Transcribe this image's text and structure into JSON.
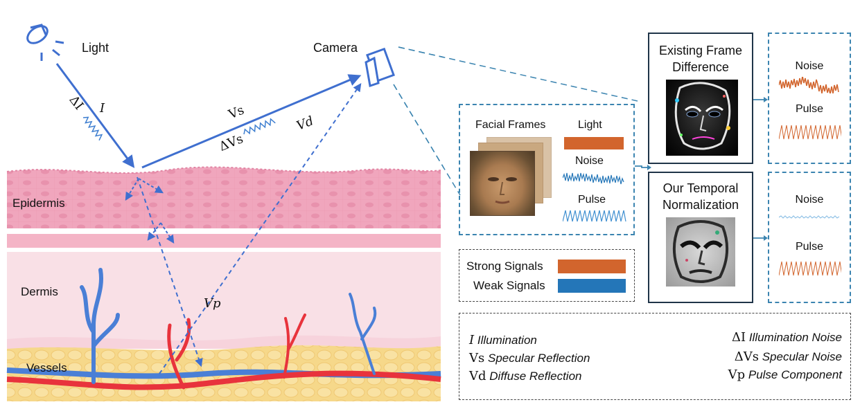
{
  "scene": {
    "light_label": "Light",
    "camera_label": "Camera",
    "sym_I": "I",
    "sym_dI": "ΔI",
    "sym_Vs": "Vs",
    "sym_dVs": "ΔVs",
    "sym_Vd": "Vd",
    "sym_Vp": "Vp",
    "layers": {
      "epidermis": "Epidermis",
      "dermis": "Dermis",
      "vessels": "Vessels"
    }
  },
  "input_panel": {
    "facial_frames": "Facial Frames",
    "light": "Light",
    "noise": "Noise",
    "pulse": "Pulse"
  },
  "methods": {
    "existing_title_1": "Existing Frame",
    "existing_title_2": "Difference",
    "ours_title_1": "Our Temporal",
    "ours_title_2": "Normalization"
  },
  "outputs": {
    "top_noise": "Noise",
    "top_pulse": "Pulse",
    "bottom_noise": "Noise",
    "bottom_pulse": "Pulse"
  },
  "signal_legend": {
    "strong": "Strong Signals",
    "weak": "Weak Signals",
    "strong_color": "#d2652d",
    "weak_color": "#2476b8"
  },
  "notation": {
    "i_sym": "I",
    "i_text": "Illumination",
    "vs_sym": "Vs",
    "vs_text": "Specular Reflection",
    "vd_sym": "Vd",
    "vd_text": "Diffuse Reflection",
    "di_sym": "ΔI",
    "di_text": "Illumination Noise",
    "dvs_sym": "ΔVs",
    "dvs_text": "Specular Noise",
    "vp_sym": "Vp",
    "vp_text": "Pulse Component"
  },
  "colors": {
    "ray_blue": "#3f6fcf",
    "panel_dash": "#3b84b0",
    "skin_pink": "#f1a9c0",
    "dermis_pink": "#f8dbe2",
    "fat_yellow": "#f6d98a",
    "vein_blue": "#4a7fd6",
    "artery_red": "#e8333c"
  }
}
